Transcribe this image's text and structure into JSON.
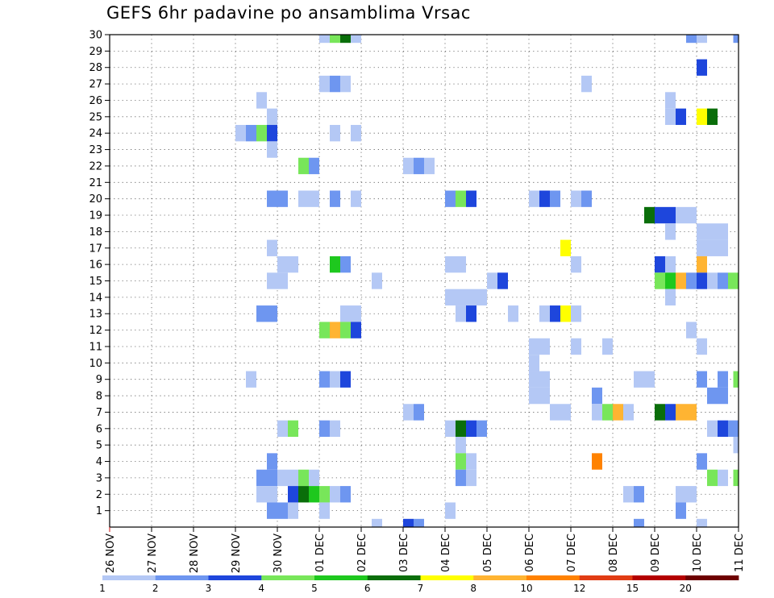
{
  "chart_data": {
    "type": "heatmap",
    "title": "GEFS 6hr padavine po ansamblima Vrsac",
    "xlabel": "",
    "ylabel": "",
    "x_ticks": [
      "26 NOV",
      "27 NOV",
      "28 NOV",
      "29 NOV",
      "30 NOV",
      "01 DEC",
      "02 DEC",
      "03 DEC",
      "04 DEC",
      "05 DEC",
      "06 DEC",
      "07 DEC",
      "08 DEC",
      "09 DEC",
      "10 DEC",
      "11 DEC"
    ],
    "y_ticks": [
      1,
      2,
      3,
      4,
      5,
      6,
      7,
      8,
      9,
      10,
      11,
      12,
      13,
      14,
      15,
      16,
      17,
      18,
      19,
      20,
      21,
      22,
      23,
      24,
      25,
      26,
      27,
      28,
      29,
      30
    ],
    "x_unit": "6-hour step (0 = 26 NOV 00Z)",
    "x_range": [
      0,
      60
    ],
    "y_range": [
      0,
      30
    ],
    "grid": true,
    "legend": {
      "placement": "bottom",
      "labels": [
        "1",
        "2",
        "3",
        "4",
        "5",
        "6",
        "7",
        "8",
        "10",
        "12",
        "15",
        "20"
      ],
      "colors": [
        "#b4c8f5",
        "#6e96f0",
        "#1e46dc",
        "#78e65a",
        "#1ec81e",
        "#0a6e0a",
        "#ffff00",
        "#ffb432",
        "#ff8200",
        "#e13c14",
        "#b40000",
        "#6e0000"
      ]
    },
    "cells": [
      {
        "x": [
          20,
          21
        ],
        "y": 30,
        "l": 0
      },
      {
        "x": [
          21,
          22
        ],
        "y": 30,
        "l": 3
      },
      {
        "x": [
          22,
          23
        ],
        "y": 30,
        "l": 5
      },
      {
        "x": [
          23,
          24
        ],
        "y": 30,
        "l": 0
      },
      {
        "x": [
          55,
          56
        ],
        "y": 30,
        "l": 1
      },
      {
        "x": [
          56,
          57
        ],
        "y": 30,
        "l": 0
      },
      {
        "x": [
          59.5,
          60
        ],
        "y": 30,
        "l": 1
      },
      {
        "x": [
          56,
          57
        ],
        "y": 28,
        "l": 2
      },
      {
        "x": [
          20,
          21
        ],
        "y": 27,
        "l": 0
      },
      {
        "x": [
          21,
          22
        ],
        "y": 27,
        "l": 1
      },
      {
        "x": [
          22,
          23
        ],
        "y": 27,
        "l": 0
      },
      {
        "x": [
          45,
          46
        ],
        "y": 27,
        "l": 0
      },
      {
        "x": [
          14,
          15
        ],
        "y": 26,
        "l": 0
      },
      {
        "x": [
          53,
          54
        ],
        "y": 26,
        "l": 0
      },
      {
        "x": [
          15,
          16
        ],
        "y": 25,
        "l": 0
      },
      {
        "x": [
          53,
          54
        ],
        "y": 25,
        "l": 0
      },
      {
        "x": [
          54,
          55
        ],
        "y": 25,
        "l": 2
      },
      {
        "x": [
          56,
          57
        ],
        "y": 25,
        "l": 6
      },
      {
        "x": [
          57,
          58
        ],
        "y": 25,
        "l": 5
      },
      {
        "x": [
          12,
          13
        ],
        "y": 24,
        "l": 0
      },
      {
        "x": [
          13,
          14
        ],
        "y": 24,
        "l": 1
      },
      {
        "x": [
          14,
          15
        ],
        "y": 24,
        "l": 3
      },
      {
        "x": [
          15,
          16
        ],
        "y": 24,
        "l": 2
      },
      {
        "x": [
          21,
          22
        ],
        "y": 24,
        "l": 0
      },
      {
        "x": [
          23,
          24
        ],
        "y": 24,
        "l": 0
      },
      {
        "x": [
          15,
          16
        ],
        "y": 23,
        "l": 0
      },
      {
        "x": [
          18,
          19
        ],
        "y": 22,
        "l": 3
      },
      {
        "x": [
          19,
          20
        ],
        "y": 22,
        "l": 1
      },
      {
        "x": [
          28,
          29
        ],
        "y": 22,
        "l": 0
      },
      {
        "x": [
          29,
          30
        ],
        "y": 22,
        "l": 1
      },
      {
        "x": [
          30,
          31
        ],
        "y": 22,
        "l": 0
      },
      {
        "x": [
          15,
          17
        ],
        "y": 20,
        "l": 1
      },
      {
        "x": [
          18,
          20
        ],
        "y": 20,
        "l": 0
      },
      {
        "x": [
          21,
          22
        ],
        "y": 20,
        "l": 1
      },
      {
        "x": [
          23,
          24
        ],
        "y": 20,
        "l": 0
      },
      {
        "x": [
          32,
          33
        ],
        "y": 20,
        "l": 1
      },
      {
        "x": [
          33,
          34
        ],
        "y": 20,
        "l": 3
      },
      {
        "x": [
          34,
          35
        ],
        "y": 20,
        "l": 2
      },
      {
        "x": [
          40,
          41
        ],
        "y": 20,
        "l": 0
      },
      {
        "x": [
          41,
          42
        ],
        "y": 20,
        "l": 2
      },
      {
        "x": [
          42,
          43
        ],
        "y": 20,
        "l": 1
      },
      {
        "x": [
          44,
          45
        ],
        "y": 20,
        "l": 0
      },
      {
        "x": [
          45,
          46
        ],
        "y": 20,
        "l": 1
      },
      {
        "x": [
          51,
          52
        ],
        "y": 19,
        "l": 5
      },
      {
        "x": [
          52,
          54
        ],
        "y": 19,
        "l": 2
      },
      {
        "x": [
          54,
          56
        ],
        "y": 19,
        "l": 0
      },
      {
        "x": [
          53,
          54
        ],
        "y": 18,
        "l": 0
      },
      {
        "x": [
          56,
          59
        ],
        "y": 18,
        "l": 0
      },
      {
        "x": [
          56,
          59
        ],
        "y": 17,
        "l": 0
      },
      {
        "x": [
          15,
          16
        ],
        "y": 17,
        "l": 0
      },
      {
        "x": [
          43,
          44
        ],
        "y": 17,
        "l": 6
      },
      {
        "x": [
          16,
          18
        ],
        "y": 16,
        "l": 0
      },
      {
        "x": [
          21,
          22
        ],
        "y": 16,
        "l": 4
      },
      {
        "x": [
          22,
          23
        ],
        "y": 16,
        "l": 1
      },
      {
        "x": [
          32,
          34
        ],
        "y": 16,
        "l": 0
      },
      {
        "x": [
          44,
          45
        ],
        "y": 16,
        "l": 0
      },
      {
        "x": [
          52,
          53
        ],
        "y": 16,
        "l": 2
      },
      {
        "x": [
          53,
          54
        ],
        "y": 16,
        "l": 0
      },
      {
        "x": [
          56,
          57
        ],
        "y": 16,
        "l": 7
      },
      {
        "x": [
          15,
          17
        ],
        "y": 15,
        "l": 0
      },
      {
        "x": [
          25,
          26
        ],
        "y": 15,
        "l": 0
      },
      {
        "x": [
          36,
          37
        ],
        "y": 15,
        "l": 0
      },
      {
        "x": [
          37,
          38
        ],
        "y": 15,
        "l": 2
      },
      {
        "x": [
          52,
          53
        ],
        "y": 15,
        "l": 3
      },
      {
        "x": [
          53,
          54
        ],
        "y": 15,
        "l": 4
      },
      {
        "x": [
          54,
          55
        ],
        "y": 15,
        "l": 7
      },
      {
        "x": [
          55,
          56
        ],
        "y": 15,
        "l": 1
      },
      {
        "x": [
          56,
          57
        ],
        "y": 15,
        "l": 2
      },
      {
        "x": [
          57,
          58
        ],
        "y": 15,
        "l": 0
      },
      {
        "x": [
          58,
          59
        ],
        "y": 15,
        "l": 1
      },
      {
        "x": [
          59,
          60
        ],
        "y": 15,
        "l": 3
      },
      {
        "x": [
          32,
          36
        ],
        "y": 14,
        "l": 0
      },
      {
        "x": [
          53,
          54
        ],
        "y": 14,
        "l": 0
      },
      {
        "x": [
          14,
          16
        ],
        "y": 13,
        "l": 1
      },
      {
        "x": [
          22,
          24
        ],
        "y": 13,
        "l": 0
      },
      {
        "x": [
          33,
          34
        ],
        "y": 13,
        "l": 0
      },
      {
        "x": [
          34,
          35
        ],
        "y": 13,
        "l": 2
      },
      {
        "x": [
          38,
          39
        ],
        "y": 13,
        "l": 0
      },
      {
        "x": [
          41,
          42
        ],
        "y": 13,
        "l": 0
      },
      {
        "x": [
          42,
          43
        ],
        "y": 13,
        "l": 2
      },
      {
        "x": [
          43,
          44
        ],
        "y": 13,
        "l": 6
      },
      {
        "x": [
          44,
          45
        ],
        "y": 13,
        "l": 0
      },
      {
        "x": [
          20,
          21
        ],
        "y": 12,
        "l": 3
      },
      {
        "x": [
          21,
          22
        ],
        "y": 12,
        "l": 7
      },
      {
        "x": [
          22,
          23
        ],
        "y": 12,
        "l": 3
      },
      {
        "x": [
          23,
          24
        ],
        "y": 12,
        "l": 2
      },
      {
        "x": [
          55,
          56
        ],
        "y": 12,
        "l": 0
      },
      {
        "x": [
          40,
          42
        ],
        "y": 11,
        "l": 0
      },
      {
        "x": [
          44,
          45
        ],
        "y": 11,
        "l": 0
      },
      {
        "x": [
          47,
          48
        ],
        "y": 11,
        "l": 0
      },
      {
        "x": [
          56,
          57
        ],
        "y": 11,
        "l": 0
      },
      {
        "x": [
          40,
          41
        ],
        "y": 10,
        "l": 0
      },
      {
        "x": [
          13,
          14
        ],
        "y": 9,
        "l": 0
      },
      {
        "x": [
          20,
          21
        ],
        "y": 9,
        "l": 1
      },
      {
        "x": [
          21,
          22
        ],
        "y": 9,
        "l": 0
      },
      {
        "x": [
          22,
          23
        ],
        "y": 9,
        "l": 2
      },
      {
        "x": [
          40,
          42
        ],
        "y": 9,
        "l": 0
      },
      {
        "x": [
          50,
          52
        ],
        "y": 9,
        "l": 0
      },
      {
        "x": [
          56,
          57
        ],
        "y": 9,
        "l": 1
      },
      {
        "x": [
          58,
          59
        ],
        "y": 9,
        "l": 1
      },
      {
        "x": [
          59.5,
          60
        ],
        "y": 9,
        "l": 3
      },
      {
        "x": [
          40,
          42
        ],
        "y": 8,
        "l": 0
      },
      {
        "x": [
          46,
          47
        ],
        "y": 8,
        "l": 1
      },
      {
        "x": [
          57,
          59
        ],
        "y": 8,
        "l": 1
      },
      {
        "x": [
          28,
          29
        ],
        "y": 7,
        "l": 0
      },
      {
        "x": [
          29,
          30
        ],
        "y": 7,
        "l": 1
      },
      {
        "x": [
          42,
          44
        ],
        "y": 7,
        "l": 0
      },
      {
        "x": [
          46,
          47
        ],
        "y": 7,
        "l": 0
      },
      {
        "x": [
          47,
          48
        ],
        "y": 7,
        "l": 3
      },
      {
        "x": [
          48,
          49
        ],
        "y": 7,
        "l": 7
      },
      {
        "x": [
          49,
          50
        ],
        "y": 7,
        "l": 0
      },
      {
        "x": [
          52,
          53
        ],
        "y": 7,
        "l": 5
      },
      {
        "x": [
          53,
          54
        ],
        "y": 7,
        "l": 2
      },
      {
        "x": [
          54,
          56
        ],
        "y": 7,
        "l": 7
      },
      {
        "x": [
          16,
          17
        ],
        "y": 6,
        "l": 0
      },
      {
        "x": [
          17,
          18
        ],
        "y": 6,
        "l": 3
      },
      {
        "x": [
          20,
          21
        ],
        "y": 6,
        "l": 1
      },
      {
        "x": [
          21,
          22
        ],
        "y": 6,
        "l": 0
      },
      {
        "x": [
          32,
          33
        ],
        "y": 6,
        "l": 0
      },
      {
        "x": [
          33,
          34
        ],
        "y": 6,
        "l": 5
      },
      {
        "x": [
          34,
          35
        ],
        "y": 6,
        "l": 2
      },
      {
        "x": [
          35,
          36
        ],
        "y": 6,
        "l": 1
      },
      {
        "x": [
          57,
          58
        ],
        "y": 6,
        "l": 0
      },
      {
        "x": [
          58,
          59
        ],
        "y": 6,
        "l": 2
      },
      {
        "x": [
          59,
          60
        ],
        "y": 6,
        "l": 1
      },
      {
        "x": [
          33,
          34
        ],
        "y": 5,
        "l": 0
      },
      {
        "x": [
          59.5,
          60
        ],
        "y": 5,
        "l": 0
      },
      {
        "x": [
          15,
          16
        ],
        "y": 4,
        "l": 1
      },
      {
        "x": [
          33,
          34
        ],
        "y": 4,
        "l": 3
      },
      {
        "x": [
          34,
          35
        ],
        "y": 4,
        "l": 0
      },
      {
        "x": [
          46,
          47
        ],
        "y": 4,
        "l": 8
      },
      {
        "x": [
          56,
          57
        ],
        "y": 4,
        "l": 1
      },
      {
        "x": [
          14,
          16
        ],
        "y": 3,
        "l": 1
      },
      {
        "x": [
          16,
          18
        ],
        "y": 3,
        "l": 0
      },
      {
        "x": [
          18,
          19
        ],
        "y": 3,
        "l": 3
      },
      {
        "x": [
          19,
          20
        ],
        "y": 3,
        "l": 0
      },
      {
        "x": [
          33,
          34
        ],
        "y": 3,
        "l": 1
      },
      {
        "x": [
          34,
          35
        ],
        "y": 3,
        "l": 0
      },
      {
        "x": [
          57,
          58
        ],
        "y": 3,
        "l": 3
      },
      {
        "x": [
          58,
          59
        ],
        "y": 3,
        "l": 0
      },
      {
        "x": [
          59.5,
          60
        ],
        "y": 3,
        "l": 3
      },
      {
        "x": [
          14,
          16
        ],
        "y": 2,
        "l": 0
      },
      {
        "x": [
          17,
          18
        ],
        "y": 2,
        "l": 2
      },
      {
        "x": [
          18,
          19
        ],
        "y": 2,
        "l": 5
      },
      {
        "x": [
          19,
          20
        ],
        "y": 2,
        "l": 4
      },
      {
        "x": [
          20,
          21
        ],
        "y": 2,
        "l": 3
      },
      {
        "x": [
          21,
          22
        ],
        "y": 2,
        "l": 0
      },
      {
        "x": [
          22,
          23
        ],
        "y": 2,
        "l": 1
      },
      {
        "x": [
          49,
          50
        ],
        "y": 2,
        "l": 0
      },
      {
        "x": [
          50,
          51
        ],
        "y": 2,
        "l": 1
      },
      {
        "x": [
          54,
          56
        ],
        "y": 2,
        "l": 0
      },
      {
        "x": [
          15,
          16
        ],
        "y": 1,
        "l": 1
      },
      {
        "x": [
          16,
          17
        ],
        "y": 1,
        "l": 1
      },
      {
        "x": [
          17,
          18
        ],
        "y": 1,
        "l": 0
      },
      {
        "x": [
          20,
          21
        ],
        "y": 1,
        "l": 0
      },
      {
        "x": [
          32,
          33
        ],
        "y": 1,
        "l": 0
      },
      {
        "x": [
          54,
          55
        ],
        "y": 1,
        "l": 1
      },
      {
        "x": [
          25,
          26
        ],
        "y": 0,
        "l": 0
      },
      {
        "x": [
          28,
          29
        ],
        "y": 0,
        "l": 2
      },
      {
        "x": [
          29,
          30
        ],
        "y": 0,
        "l": 1
      },
      {
        "x": [
          50,
          51
        ],
        "y": 0,
        "l": 1
      },
      {
        "x": [
          56,
          57
        ],
        "y": 0,
        "l": 0
      }
    ]
  }
}
